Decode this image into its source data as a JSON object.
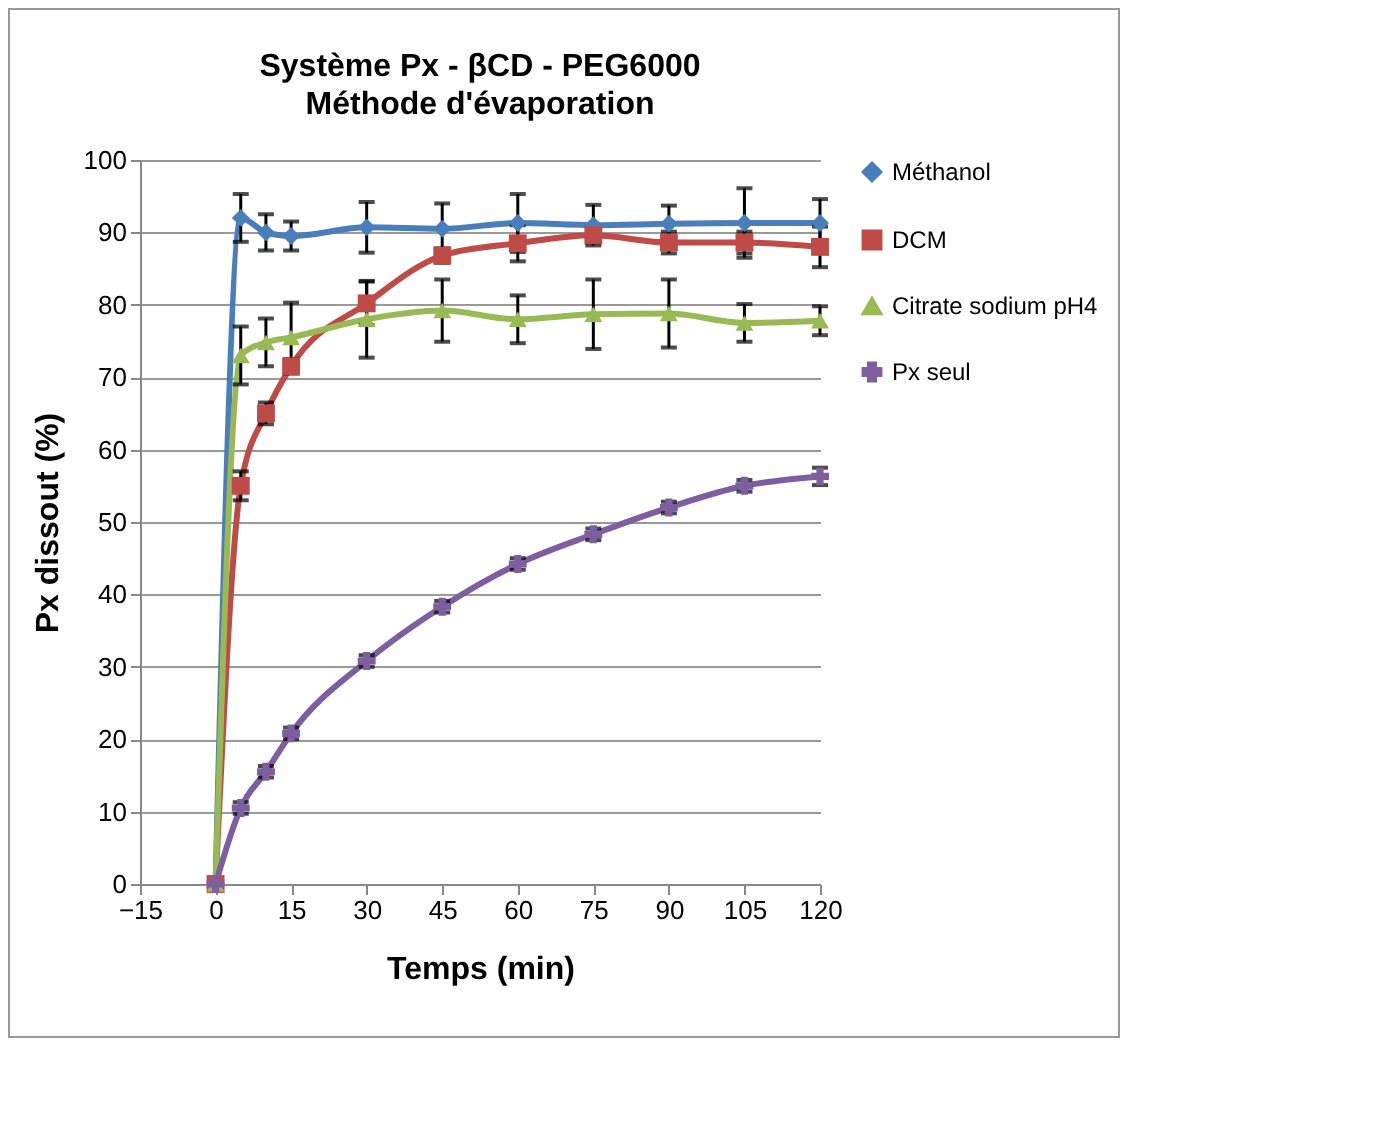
{
  "chart_data": {
    "type": "line",
    "title": "Système Px - βCD - PEG6000",
    "subtitle": "Méthode d'évaporation",
    "xlabel": "Temps (min)",
    "ylabel": "Px dissout (%)",
    "x": [
      0,
      5,
      10,
      15,
      30,
      45,
      60,
      75,
      90,
      105,
      120
    ],
    "series": [
      {
        "name": "Méthanol",
        "color": "#4a7ebb",
        "marker": "diamond",
        "values": [
          0,
          92,
          90,
          89.5,
          90.7,
          90.5,
          91.3,
          91,
          91.2,
          91.3,
          91.3
        ],
        "errors": [
          null,
          3.3,
          2.5,
          2,
          3.5,
          3.5,
          4,
          2.8,
          2.5,
          4.8,
          3.3
        ]
      },
      {
        "name": "DCM",
        "color": "#be4b48",
        "marker": "square",
        "values": [
          0,
          55,
          65,
          71.5,
          80.2,
          86.8,
          88.5,
          89.6,
          88.6,
          88.6,
          88
        ],
        "errors": [
          null,
          2,
          1.5,
          1,
          3,
          1,
          2.5,
          1,
          1.5,
          1.5,
          2.8
        ]
      },
      {
        "name": "Citrate sodium pH4",
        "color": "#98b954",
        "marker": "triangle",
        "values": [
          0,
          73,
          74.8,
          75.5,
          78,
          79.2,
          78,
          78.7,
          78.8,
          77.5,
          77.8
        ],
        "errors": [
          null,
          4,
          3.3,
          4.8,
          5.3,
          4.3,
          3.3,
          4.8,
          4.7,
          2.6,
          2
        ]
      },
      {
        "name": "Px seul",
        "color": "#7d5fa0",
        "marker": "cross",
        "values": [
          0,
          10.5,
          15.5,
          20.8,
          30.8,
          38.3,
          44.2,
          48.3,
          52,
          55,
          56.3
        ],
        "errors": [
          null,
          0.8,
          0.8,
          0.8,
          0.8,
          0.8,
          0.8,
          0.8,
          0.8,
          0.8,
          1.2
        ]
      }
    ],
    "xlim": [
      -15,
      120
    ],
    "xticks": [
      -15,
      0,
      15,
      30,
      45,
      60,
      75,
      90,
      105,
      120
    ],
    "ylim": [
      0,
      100
    ],
    "yticks": [
      0,
      10,
      20,
      30,
      40,
      50,
      60,
      70,
      80,
      90,
      100
    ],
    "grid": "y",
    "legend": "right"
  }
}
